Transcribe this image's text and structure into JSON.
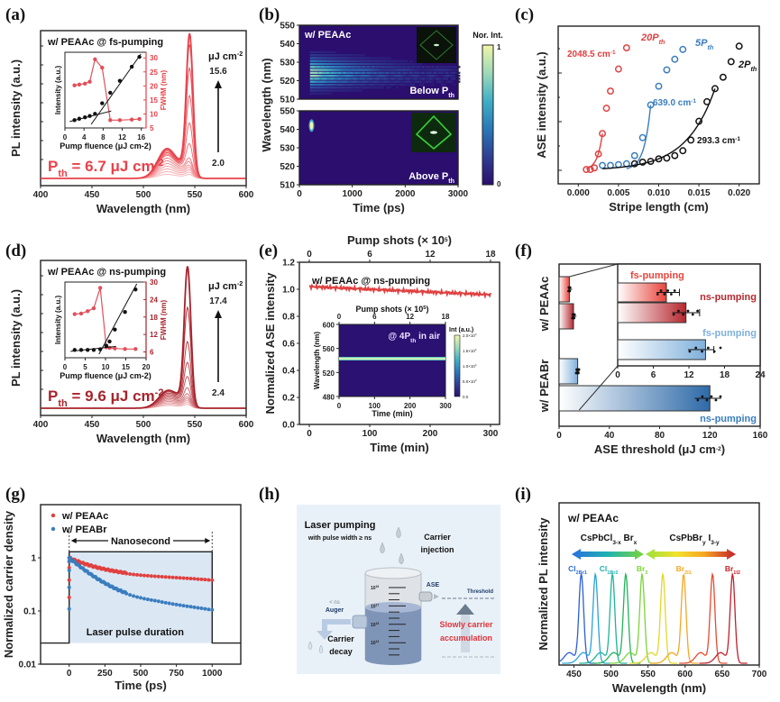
{
  "figure": {
    "panel_labels": [
      "(a)",
      "(b)",
      "(c)",
      "(d)",
      "(e)",
      "(f)",
      "(g)",
      "(h)",
      "(i)"
    ]
  },
  "chart_data": [
    {
      "id": "a",
      "type": "line",
      "title": "w/ PEAAc @ fs-pumping",
      "xlabel": "Wavelength (nm)",
      "ylabel": "PL intensity (a.u.)",
      "xlim": [
        400,
        600
      ],
      "xticks": [
        400,
        450,
        500,
        550,
        600
      ],
      "annotation_threshold": "P_th = 6.7 μJ cm^-2",
      "threshold_value": 6.7,
      "fluence_unit": "μJ cm-2",
      "fluence_max_label": "15.6",
      "fluence_min_label": "2.0",
      "spectra": {
        "broad_peak_nm": 523,
        "ase_peak_nm": 545,
        "ase_peak_heights_rel": [
          0.02,
          0.03,
          0.04,
          0.05,
          0.06,
          0.08,
          0.1,
          0.2,
          0.35,
          0.55,
          0.75,
          0.92,
          1.0
        ],
        "broad_peak_heights_rel": [
          0.03,
          0.05,
          0.07,
          0.09,
          0.11,
          0.13,
          0.15,
          0.17,
          0.18,
          0.19,
          0.2,
          0.21,
          0.22
        ]
      },
      "inset": {
        "xlabel": "Pump fluence (μJ cm-2)",
        "ylabel_left": "Intensity (a.u.)",
        "ylabel_right": "FWHM (nm)",
        "xlim": [
          0,
          17
        ],
        "xticks": [
          0,
          4,
          8,
          12,
          16
        ],
        "ylim_right": [
          5,
          32
        ],
        "yticks_right": [
          5,
          10,
          15,
          20,
          25,
          30
        ],
        "fwhm": {
          "x": [
            2.0,
            3.0,
            4.2,
            5.2,
            6.3,
            7.8,
            9.5,
            11.5,
            14.0,
            15.6
          ],
          "y": [
            20.2,
            20.5,
            20.8,
            21.5,
            29.5,
            26.5,
            7.8,
            7.8,
            8.0,
            8.2
          ]
        },
        "intensity": {
          "x": [
            2.0,
            3.0,
            4.2,
            5.2,
            6.3,
            7.8,
            9.5,
            11.5,
            14.0,
            15.6
          ],
          "y": [
            0.06,
            0.08,
            0.1,
            0.12,
            0.15,
            0.3,
            0.45,
            0.62,
            0.82,
            0.96
          ]
        }
      }
    },
    {
      "id": "b",
      "type": "heatmap",
      "title": "w/ PEAAc",
      "xlabel": "Time (ps)",
      "ylabel": "Wavelength (nm)",
      "xlim": [
        0,
        3000
      ],
      "xticks": [
        0,
        1000,
        2000,
        3000
      ],
      "ylim": [
        510,
        550
      ],
      "yticks": [
        510,
        520,
        530,
        540,
        550
      ],
      "colorbar_label": "Nor. Int.",
      "colorbar_range": [
        0,
        1
      ],
      "top_label": "Below P_th",
      "bottom_label": "Above P_th",
      "below_center_nm": 525,
      "above_center_nm": 542,
      "above_center_ps": 230
    },
    {
      "id": "c",
      "type": "scatter",
      "xlabel": "Stripe length (cm)",
      "ylabel": "ASE intensity (a.u.)",
      "xlim": [
        -0.0025,
        0.0225
      ],
      "xticks": [
        0.0,
        0.005,
        0.01,
        0.015,
        0.02
      ],
      "series": [
        {
          "name": "20P_th",
          "gain_label": "2048.5 cm-1",
          "color": "#e0403f",
          "x": [
            0.001,
            0.0015,
            0.002,
            0.0025,
            0.003,
            0.0035,
            0.004,
            0.005,
            0.006
          ],
          "y": [
            0.01,
            0.01,
            0.03,
            0.2,
            0.45,
            0.76,
            0.97,
            1.24,
            1.5
          ]
        },
        {
          "name": "5P_th",
          "gain_label": "639.0 cm-1",
          "color": "#3a7dbf",
          "x": [
            0.003,
            0.004,
            0.005,
            0.006,
            0.007,
            0.008,
            0.009,
            0.01,
            0.011,
            0.012,
            0.013
          ],
          "y": [
            0.06,
            0.06,
            0.07,
            0.08,
            0.18,
            0.4,
            0.8,
            1.03,
            1.23,
            1.36,
            1.48
          ]
        },
        {
          "name": "2P_th",
          "gain_label": "293.3 cm-1",
          "color": "#111111",
          "x": [
            0.007,
            0.008,
            0.009,
            0.01,
            0.011,
            0.012,
            0.013,
            0.014,
            0.015,
            0.016,
            0.017,
            0.018,
            0.019,
            0.02
          ],
          "y": [
            0.08,
            0.1,
            0.11,
            0.14,
            0.15,
            0.18,
            0.24,
            0.37,
            0.6,
            0.84,
            1.0,
            1.14,
            1.33,
            1.52
          ]
        }
      ]
    },
    {
      "id": "d",
      "type": "line",
      "title": "w/ PEAAc @ ns-pumping",
      "xlabel": "Wavelength (nm)",
      "ylabel": "PL intensity (a.u.)",
      "xlim": [
        400,
        600
      ],
      "xticks": [
        400,
        450,
        500,
        550,
        600
      ],
      "annotation_threshold": "P_th = 9.6 μJ cm^-2",
      "threshold_value": 9.6,
      "fluence_unit": "μJ cm-2",
      "fluence_max_label": "17.4",
      "fluence_min_label": "2.4",
      "spectra": {
        "broad_peak_nm": 524,
        "ase_peak_nm": 543,
        "ase_peak_heights_rel": [
          0.02,
          0.03,
          0.04,
          0.05,
          0.06,
          0.08,
          0.12,
          0.2,
          0.3,
          0.45,
          0.7,
          1.0
        ],
        "broad_peak_heights_rel": [
          0.02,
          0.03,
          0.04,
          0.05,
          0.06,
          0.07,
          0.08,
          0.09,
          0.1,
          0.11,
          0.12,
          0.13
        ]
      },
      "inset": {
        "xlabel": "Pump fluence (μJ cm-2)",
        "ylabel_left": "Intensity (a.u.)",
        "ylabel_right": "FWHM (nm)",
        "xlim": [
          0,
          20
        ],
        "xticks": [
          0,
          5,
          10,
          15,
          20
        ],
        "ylim_right": [
          4,
          30
        ],
        "yticks_right": [
          6,
          12,
          18,
          24,
          30
        ],
        "fwhm": {
          "x": [
            2.4,
            4.0,
            5.6,
            7.1,
            8.7,
            10.2,
            11.0,
            12.3,
            14.8,
            17.4
          ],
          "y": [
            19.0,
            19.2,
            20.0,
            21.0,
            28.0,
            7.6,
            7.4,
            7.2,
            7.0,
            7.0
          ]
        },
        "intensity": {
          "x": [
            2.4,
            4.0,
            5.6,
            7.1,
            8.7,
            10.2,
            11.0,
            12.3,
            14.8,
            17.4
          ],
          "y": [
            0.06,
            0.06,
            0.06,
            0.06,
            0.07,
            0.12,
            0.18,
            0.35,
            0.6,
            0.92
          ]
        }
      }
    },
    {
      "id": "e",
      "type": "scatter",
      "title": "w/ PEAAc @ ns-pumping",
      "xlabel": "Time (min)",
      "ylabel": "Normalized ASE intensity",
      "xlabel_top": "Pump shots (× 10^5)",
      "xlim": [
        0,
        300
      ],
      "xticks": [
        0,
        100,
        200,
        300
      ],
      "xticks_top": [
        0,
        6,
        12,
        18
      ],
      "ylim": [
        0.0,
        1.2
      ],
      "yticks": [
        0.0,
        0.2,
        0.4,
        0.6,
        0.8,
        1.0,
        1.2
      ],
      "trend": {
        "x": [
          0,
          300
        ],
        "y": [
          1.02,
          0.96
        ]
      },
      "inset": {
        "type": "heatmap",
        "label": "@ 4P_th in air",
        "xlabel": "Time (min)",
        "ylabel": "Wavelength (nm)",
        "xlabel_top": "Pump shots (× 10^5)",
        "xlim": [
          0,
          300
        ],
        "xticks": [
          0,
          100,
          200,
          300
        ],
        "xticks_top": [
          0,
          6,
          12,
          18
        ],
        "ylim": [
          480,
          600
        ],
        "yticks": [
          480,
          520,
          560,
          600
        ],
        "band_nm": 543,
        "colorbar_label": "Int (a.u.)",
        "colorbar_ticks": [
          "0.0",
          "5.0×10^3",
          "1.0×10^4",
          "1.5×10^4",
          "2.0×10^4"
        ]
      }
    },
    {
      "id": "f",
      "type": "bar",
      "xlabel": "ASE threshold (μJ cm-2)",
      "xlim": [
        0,
        160
      ],
      "xticks": [
        0,
        40,
        80,
        120,
        160
      ],
      "groups": [
        "w/ PEAAc",
        "w/ PEABr"
      ],
      "bars": [
        {
          "group": "w/ PEAAc",
          "label": "fs-pumping",
          "value": 8.2,
          "err_high": 10.4,
          "color": "#e8453c"
        },
        {
          "group": "w/ PEAAc",
          "label": "ns-pumping",
          "value": 11.5,
          "err_high": 13.8,
          "color": "#b5282f"
        },
        {
          "group": "w/ PEABr",
          "label": "fs-pumping",
          "value": 14.8,
          "err_high": 16.2,
          "color": "#7fb0db"
        },
        {
          "group": "w/ PEABr",
          "label": "ns-pumping",
          "value": 120,
          "err_high": 129,
          "color": "#2e6aa8"
        }
      ],
      "inset": {
        "xlim": [
          0,
          24
        ],
        "xticks": [
          0,
          6,
          12,
          18,
          24
        ]
      }
    },
    {
      "id": "g",
      "type": "scatter",
      "xlabel": "Time (ps)",
      "ylabel": "Normalized carrier density",
      "xlim": [
        -200,
        1200
      ],
      "xticks": [
        0,
        250,
        500,
        750,
        1000
      ],
      "ylim_log": [
        0.01,
        10
      ],
      "yticks": [
        "0.01",
        "0.1",
        "1"
      ],
      "annotation_span": "Nanosecond",
      "annotation_box": "Laser pulse duration",
      "pulse_level": 1.3,
      "baseline_level": 0.025,
      "series": [
        {
          "name": "w/ PEAAc",
          "color": "#e0403f",
          "tau_fast": 180,
          "amp_fast": 0.45,
          "tau_slow": 2500,
          "amp_slow": 0.55
        },
        {
          "name": "w/ PEABr",
          "color": "#3a7dbf",
          "tau_fast": 160,
          "amp_fast": 0.8,
          "tau_slow": 900,
          "amp_slow": 0.2
        }
      ]
    },
    {
      "id": "i",
      "type": "line",
      "title": "w/ PEAAc",
      "xlabel": "Wavelength (nm)",
      "ylabel": "Normalized PL intensity",
      "xlim": [
        430,
        700
      ],
      "xticks": [
        450,
        500,
        550,
        600,
        650,
        700
      ],
      "left_arrow_label": "CsPbCl3-xBrx",
      "right_arrow_label": "CsPbBryI3-y",
      "peaks_nm": [
        460,
        479,
        502,
        520,
        542,
        570,
        598,
        637,
        664
      ],
      "peak_colors": [
        "#2a5fd9",
        "#2aa3d9",
        "#1fb39a",
        "#23b35a",
        "#7bd43a",
        "#e3d62c",
        "#f5a623",
        "#e8492f",
        "#c21f2a"
      ],
      "composition_labels": [
        {
          "text": "Cl2Br1",
          "nm": 455,
          "color": "#2a6fd9"
        },
        {
          "text": "Cl1Br2",
          "nm": 497,
          "color": "#1fb3b0"
        },
        {
          "text": "Br3",
          "nm": 542,
          "color": "#7bd43a"
        },
        {
          "text": "Br2I1",
          "nm": 598,
          "color": "#f5a623"
        },
        {
          "text": "Br1I2",
          "nm": 664,
          "color": "#c21f2a"
        }
      ]
    }
  ],
  "diagram_h": {
    "title": "Laser pumping",
    "subtitle": "with pulse width ≥ ns",
    "carrier_injection": "Carrier injection",
    "ase_label": "ASE",
    "threshold_label": "Threshold",
    "auger_small": "< ns",
    "auger_label": "Auger",
    "carrier_decay": "Carrier decay",
    "accumulation": "Slowly carrier accumulation",
    "scale_labels": [
      "10^19",
      "10^17",
      "10^15",
      "10^13"
    ]
  }
}
